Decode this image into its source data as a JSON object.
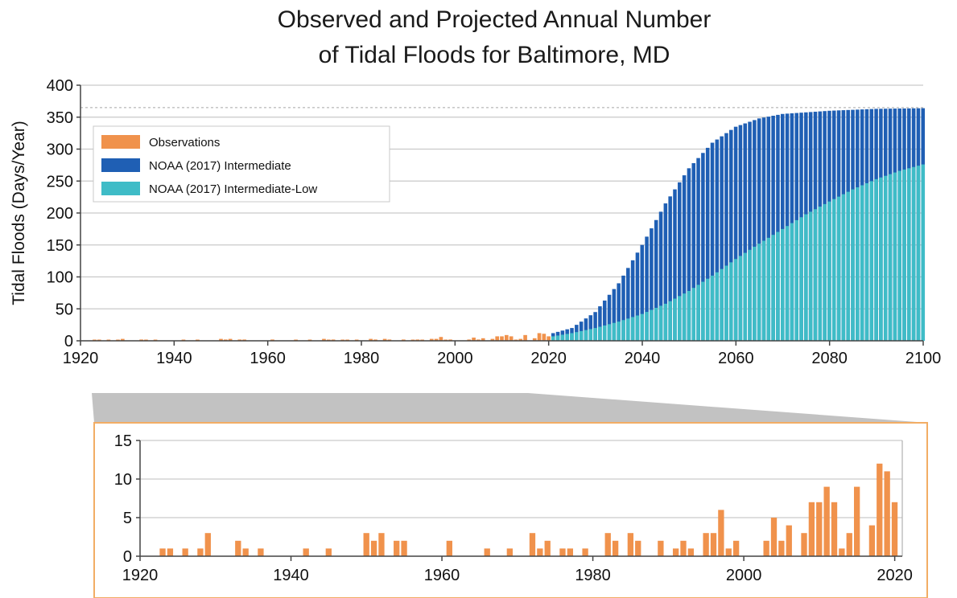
{
  "chart_data": [
    {
      "type": "bar",
      "title": "Observed and Projected Annual Number of Tidal Floods for Baltimore, MD",
      "title_lines": [
        "Observed and Projected Annual Number",
        "of Tidal Floods for Baltimore, MD"
      ],
      "ylabel": "Tidal Floods (Days/Year)",
      "xlim": [
        1920,
        2100
      ],
      "ylim": [
        0,
        400
      ],
      "xticks": [
        1920,
        1940,
        1960,
        1980,
        2000,
        2020,
        2040,
        2060,
        2080,
        2100
      ],
      "yticks": [
        0,
        50,
        100,
        150,
        200,
        250,
        300,
        350,
        400
      ],
      "grid": true,
      "reference_line": 365,
      "legend": {
        "position": "top-left",
        "entries": [
          {
            "label": "Observations",
            "color": "#f0924c"
          },
          {
            "label": "NOAA (2017) Intermediate",
            "color": "#1f5fb4"
          },
          {
            "label": "NOAA (2017) Intermediate-Low",
            "color": "#3fbcc7"
          }
        ]
      },
      "series": [
        {
          "name": "Observations",
          "x": [
            1923,
            1924,
            1926,
            1928,
            1929,
            1933,
            1934,
            1936,
            1942,
            1945,
            1950,
            1951,
            1952,
            1954,
            1955,
            1961,
            1966,
            1969,
            1972,
            1973,
            1974,
            1976,
            1977,
            1979,
            1982,
            1983,
            1985,
            1986,
            1989,
            1991,
            1992,
            1993,
            1995,
            1996,
            1997,
            1998,
            1999,
            2003,
            2004,
            2005,
            2006,
            2008,
            2009,
            2010,
            2011,
            2012,
            2013,
            2014,
            2015,
            2017,
            2018,
            2019,
            2020
          ],
          "values": [
            1,
            1,
            1,
            1,
            3,
            2,
            1,
            1,
            1,
            1,
            3,
            2,
            3,
            2,
            2,
            2,
            1,
            1,
            3,
            1,
            2,
            1,
            1,
            1,
            3,
            2,
            3,
            2,
            2,
            1,
            2,
            1,
            3,
            3,
            6,
            1,
            2,
            2,
            5,
            2,
            4,
            3,
            7,
            7,
            9,
            7,
            1,
            3,
            9,
            4,
            12,
            11,
            7
          ]
        },
        {
          "name": "NOAA (2017) Intermediate",
          "x_range": [
            2021,
            2100
          ],
          "curve_points": [
            [
              2021,
              12
            ],
            [
              2025,
              20
            ],
            [
              2030,
              45
            ],
            [
              2035,
              90
            ],
            [
              2040,
              150
            ],
            [
              2045,
              215
            ],
            [
              2050,
              270
            ],
            [
              2055,
              310
            ],
            [
              2060,
              335
            ],
            [
              2065,
              348
            ],
            [
              2070,
              355
            ],
            [
              2080,
              360
            ],
            [
              2090,
              363
            ],
            [
              2100,
              364
            ]
          ]
        },
        {
          "name": "NOAA (2017) Intermediate-Low",
          "x_range": [
            2021,
            2100
          ],
          "curve_points": [
            [
              2021,
              7
            ],
            [
              2025,
              12
            ],
            [
              2030,
              20
            ],
            [
              2035,
              30
            ],
            [
              2040,
              42
            ],
            [
              2045,
              58
            ],
            [
              2050,
              78
            ],
            [
              2055,
              102
            ],
            [
              2060,
              128
            ],
            [
              2065,
              152
            ],
            [
              2070,
              175
            ],
            [
              2075,
              198
            ],
            [
              2080,
              218
            ],
            [
              2085,
              237
            ],
            [
              2090,
              253
            ],
            [
              2095,
              266
            ],
            [
              2100,
              276
            ]
          ]
        }
      ]
    },
    {
      "type": "bar",
      "xlim": [
        1920,
        2021
      ],
      "ylim": [
        0,
        15
      ],
      "xticks": [
        1920,
        1940,
        1960,
        1980,
        2000,
        2020
      ],
      "yticks": [
        0,
        5,
        10,
        15
      ],
      "grid": true,
      "series": [
        {
          "name": "Observations",
          "ref": "observations"
        }
      ]
    }
  ]
}
